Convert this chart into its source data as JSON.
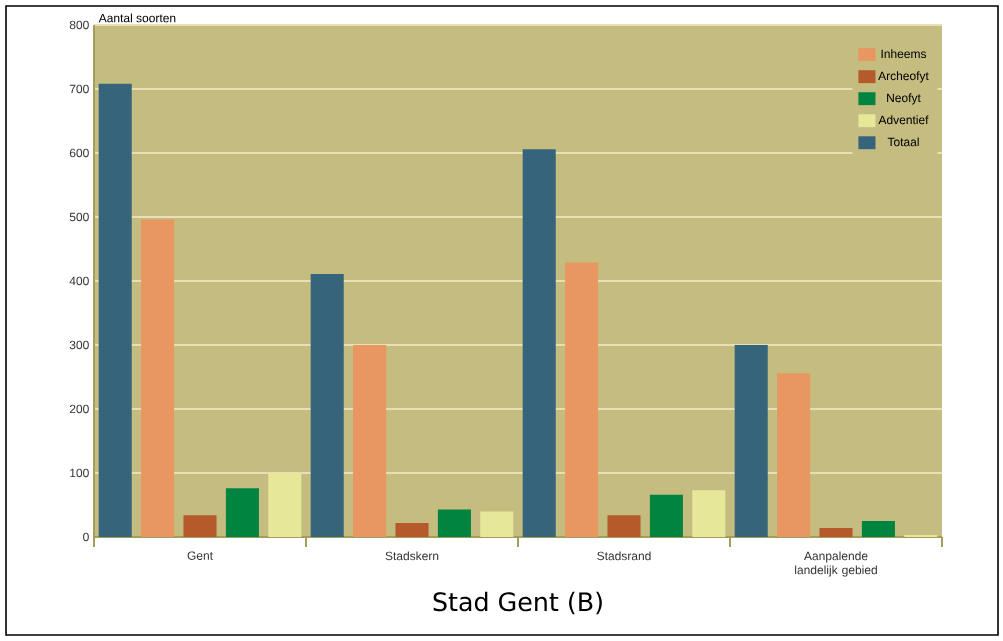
{
  "chart_data": {
    "type": "bar",
    "title": "Stad Gent (B)",
    "ylabel": "Aantal soorten",
    "categories": [
      "Gent",
      "Stadskern",
      "Stadsrand",
      "Aanpalende landelijk gebied"
    ],
    "series": [
      {
        "name": "Totaal",
        "color": "#36647a",
        "values": [
          708,
          411,
          606,
          300
        ]
      },
      {
        "name": "Inheems",
        "color": "#e89760",
        "values": [
          496,
          300,
          429,
          256
        ]
      },
      {
        "name": "Archeofyt",
        "color": "#b55a2a",
        "values": [
          34,
          22,
          34,
          14
        ]
      },
      {
        "name": "Neofyt",
        "color": "#00843f",
        "values": [
          76,
          43,
          66,
          25
        ]
      },
      {
        "name": "Adventief",
        "color": "#e7e79a",
        "values": [
          100,
          40,
          73,
          3
        ]
      }
    ],
    "ylim": [
      0,
      800
    ],
    "yticks": [
      0,
      100,
      200,
      300,
      400,
      500,
      600,
      700,
      800
    ],
    "grid": "y",
    "legend": "top right"
  }
}
